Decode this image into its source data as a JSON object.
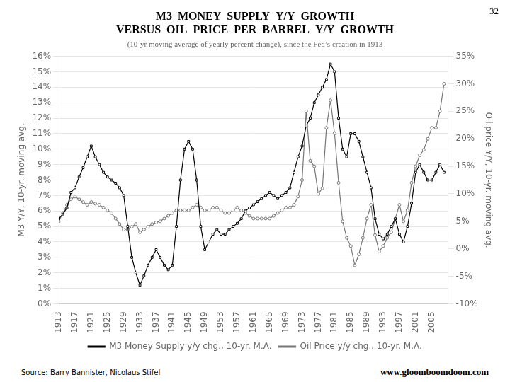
{
  "chart_data": {
    "type": "line",
    "title": [
      "M3  MONEY  SUPPLY  Y/Y  GROWTH",
      "VERSUS  OIL  PRICE  PER  BARREL  Y/Y  GROWTH"
    ],
    "subtitle": "(10-yr moving average of yearly percent change), since the Fed’s creation in 1913",
    "annotations": [
      "32",
      "Source: Barry Bannister, Nicolaus Stifel",
      "www.gloomboomdoom.com"
    ],
    "ylabel": "M3 Y/Y, 10-yr. moving avg.",
    "y2label": "Oil price Y/Y, 10-yr. moving avg.",
    "xlim": [
      1913,
      2009
    ],
    "xticks": [
      1913,
      1917,
      1921,
      1925,
      1929,
      1933,
      1937,
      1941,
      1945,
      1949,
      1953,
      1957,
      1961,
      1965,
      1969,
      1973,
      1977,
      1981,
      1985,
      1989,
      1993,
      1997,
      2001,
      2005
    ],
    "ylim": [
      0,
      16
    ],
    "yticks": [
      {
        "value": 0,
        "label": "0%"
      },
      {
        "value": 1,
        "label": "1%"
      },
      {
        "value": 2,
        "label": "2%"
      },
      {
        "value": 3,
        "label": "3%"
      },
      {
        "value": 4,
        "label": "4%"
      },
      {
        "value": 5,
        "label": "5%"
      },
      {
        "value": 6,
        "label": "6%"
      },
      {
        "value": 7,
        "label": "7%"
      },
      {
        "value": 8,
        "label": "8%"
      },
      {
        "value": 9,
        "label": "9%"
      },
      {
        "value": 10,
        "label": "10%"
      },
      {
        "value": 11,
        "label": "11%"
      },
      {
        "value": 12,
        "label": "12%"
      },
      {
        "value": 13,
        "label": "13%"
      },
      {
        "value": 14,
        "label": "14%"
      },
      {
        "value": 15,
        "label": "15%"
      },
      {
        "value": 16,
        "label": "16%"
      }
    ],
    "y2lim": [
      -10,
      35
    ],
    "y2ticks": [
      {
        "value": -10,
        "label": "-10%"
      },
      {
        "value": -5,
        "label": "-5%"
      },
      {
        "value": 0,
        "label": "0%"
      },
      {
        "value": 5,
        "label": "5%"
      },
      {
        "value": 10,
        "label": "10%"
      },
      {
        "value": 15,
        "label": "15%"
      },
      {
        "value": 20,
        "label": "20%"
      },
      {
        "value": 25,
        "label": "25%"
      },
      {
        "value": 30,
        "label": "30%"
      },
      {
        "value": 35,
        "label": "35%"
      }
    ],
    "grid": true,
    "legend": "bottom",
    "x": [
      1913,
      1914,
      1915,
      1916,
      1917,
      1918,
      1919,
      1920,
      1921,
      1922,
      1923,
      1924,
      1925,
      1926,
      1927,
      1928,
      1929,
      1930,
      1931,
      1932,
      1933,
      1934,
      1935,
      1936,
      1937,
      1938,
      1939,
      1940,
      1941,
      1942,
      1943,
      1944,
      1945,
      1946,
      1947,
      1948,
      1949,
      1950,
      1951,
      1952,
      1953,
      1954,
      1955,
      1956,
      1957,
      1958,
      1959,
      1960,
      1961,
      1962,
      1963,
      1964,
      1965,
      1966,
      1967,
      1968,
      1969,
      1970,
      1971,
      1972,
      1973,
      1974,
      1975,
      1976,
      1977,
      1978,
      1979,
      1980,
      1981,
      1982,
      1983,
      1984,
      1985,
      1986,
      1987,
      1988,
      1989,
      1990,
      1991,
      1992,
      1993,
      1994,
      1995,
      1996,
      1997,
      1998,
      1999,
      2000,
      2001,
      2002,
      2003,
      2004,
      2005,
      2006,
      2007,
      2008
    ],
    "series": [
      {
        "name": "M3 Money Supply y/y chg., 10-yr. M.A.",
        "color": "#000000",
        "marker": "square",
        "axis": "y",
        "values": [
          5.5,
          5.8,
          6.2,
          7.2,
          7.5,
          8.2,
          8.8,
          9.5,
          10.2,
          9.5,
          9.0,
          8.5,
          8.2,
          8.0,
          7.8,
          7.5,
          7.0,
          5.0,
          3.0,
          2.0,
          1.2,
          1.8,
          2.5,
          3.0,
          3.5,
          3.0,
          2.5,
          2.2,
          2.5,
          5.0,
          8.0,
          10.0,
          10.5,
          10.0,
          8.0,
          5.0,
          3.5,
          4.0,
          4.5,
          4.8,
          4.5,
          4.5,
          4.8,
          5.0,
          5.2,
          5.5,
          6.0,
          6.2,
          6.4,
          6.6,
          6.8,
          7.0,
          7.2,
          7.0,
          6.8,
          7.0,
          7.2,
          7.5,
          8.5,
          9.5,
          10.2,
          11.5,
          12.0,
          13.0,
          13.5,
          14.0,
          14.5,
          15.5,
          15.0,
          12.0,
          10.0,
          9.5,
          11.0,
          11.0,
          10.5,
          9.5,
          8.5,
          7.5,
          5.5,
          4.5,
          4.2,
          4.5,
          5.0,
          5.5,
          4.5,
          4.0,
          5.0,
          6.5,
          8.5,
          9.0,
          8.5,
          8.0,
          8.0,
          8.5,
          9.0,
          8.5
        ]
      },
      {
        "name": "Oil Price y/y chg., 10-yr. M.A.",
        "color": "#777777",
        "marker": "circle",
        "axis": "y2",
        "values": [
          5.0,
          6.5,
          8.0,
          9.0,
          9.5,
          9.0,
          8.5,
          8.0,
          8.5,
          8.2,
          8.0,
          7.5,
          7.0,
          6.5,
          5.5,
          4.5,
          3.5,
          3.5,
          4.0,
          4.5,
          3.0,
          3.5,
          4.0,
          4.5,
          4.8,
          5.0,
          5.5,
          6.0,
          6.5,
          7.0,
          7.0,
          7.0,
          7.0,
          7.5,
          8.0,
          7.5,
          7.0,
          7.0,
          7.5,
          7.5,
          7.0,
          6.5,
          6.5,
          7.0,
          7.5,
          7.0,
          6.5,
          6.0,
          5.5,
          5.5,
          5.5,
          5.5,
          5.5,
          6.0,
          6.5,
          7.0,
          7.5,
          7.5,
          8.0,
          9.5,
          12.5,
          25.0,
          16.0,
          15.0,
          10.0,
          11.0,
          22.0,
          27.0,
          21.0,
          12.0,
          5.0,
          2.0,
          0.5,
          -3.0,
          -1.0,
          2.0,
          5.5,
          8.0,
          2.5,
          -0.5,
          0.5,
          2.0,
          3.0,
          5.5,
          8.0,
          5.0,
          7.0,
          12.0,
          15.0,
          17.0,
          18.0,
          20.0,
          22.0,
          22.0,
          25.0,
          30.0
        ]
      }
    ]
  }
}
